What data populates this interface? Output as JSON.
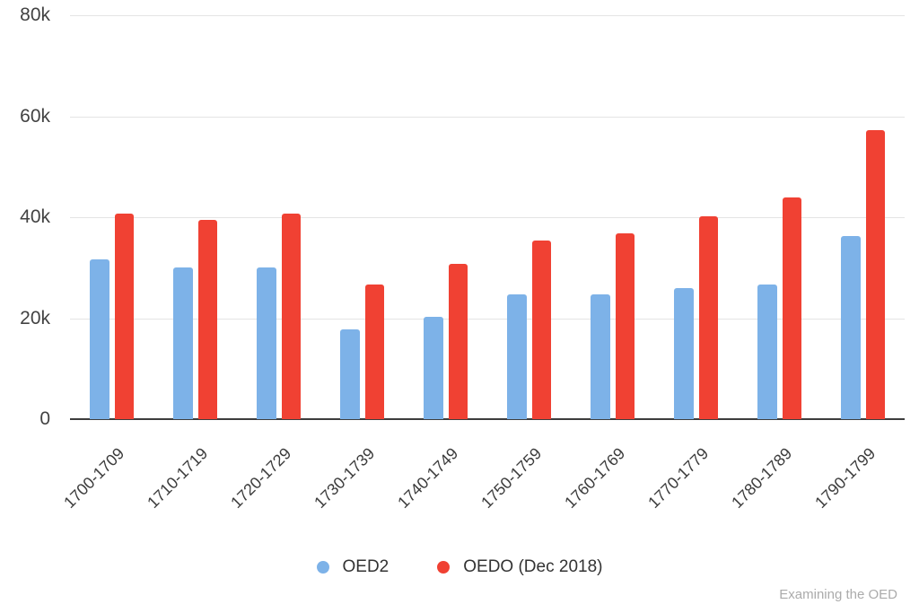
{
  "credit": "Examining the OED",
  "chart_data": {
    "type": "bar",
    "title": "",
    "xlabel": "",
    "ylabel": "",
    "grid": true,
    "legend_position": "bottom",
    "ylim": [
      0,
      80000
    ],
    "yticks": [
      {
        "value": 0,
        "label": "0"
      },
      {
        "value": 20000,
        "label": "20k"
      },
      {
        "value": 40000,
        "label": "40k"
      },
      {
        "value": 60000,
        "label": "60k"
      },
      {
        "value": 80000,
        "label": "80k"
      }
    ],
    "categories": [
      "1700-1709",
      "1710-1719",
      "1720-1729",
      "1730-1739",
      "1740-1749",
      "1750-1759",
      "1760-1769",
      "1770-1779",
      "1780-1789",
      "1790-1799"
    ],
    "series": [
      {
        "name": "OED2",
        "color": "#7db2e8",
        "values": [
          31600,
          30100,
          30100,
          17700,
          20200,
          24800,
          24700,
          25900,
          26700,
          36200
        ]
      },
      {
        "name": "OEDO (Dec 2018)",
        "color": "#f04133",
        "values": [
          40800,
          39500,
          40700,
          26700,
          30800,
          35300,
          36800,
          40200,
          43900,
          57200
        ]
      }
    ]
  }
}
